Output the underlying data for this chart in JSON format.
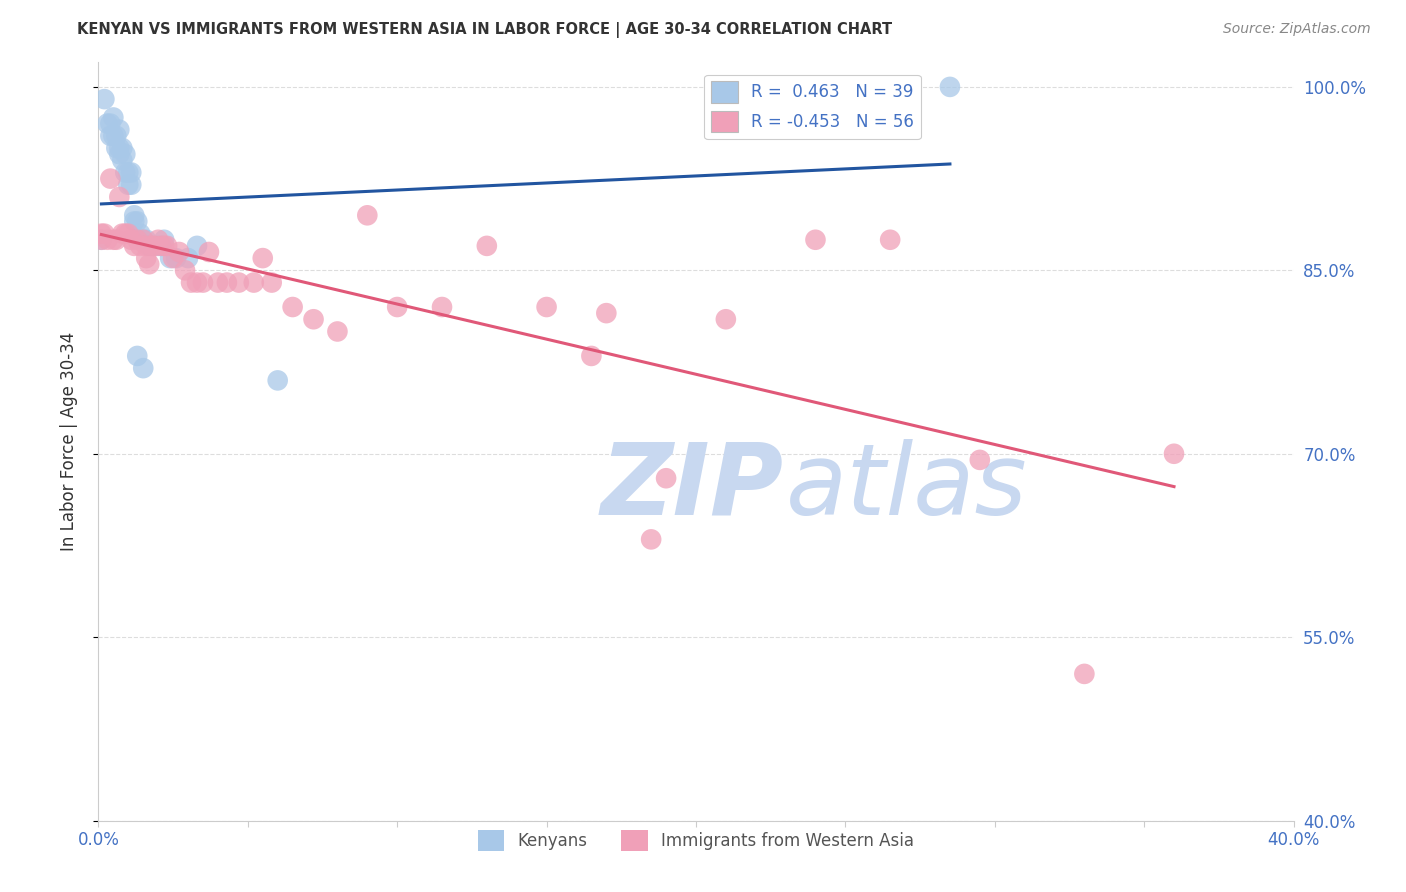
{
  "title": "KENYAN VS IMMIGRANTS FROM WESTERN ASIA IN LABOR FORCE | AGE 30-34 CORRELATION CHART",
  "source": "Source: ZipAtlas.com",
  "ylabel": "In Labor Force | Age 30-34",
  "xmin": 0.0,
  "xmax": 0.4,
  "ymin": 0.4,
  "ymax": 1.02,
  "ytick_positions": [
    1.0,
    0.85,
    0.7,
    0.55,
    0.4
  ],
  "ytick_labels": [
    "100.0%",
    "85.0%",
    "70.0%",
    "55.0%",
    "40.0%"
  ],
  "legend_labels": [
    "Kenyans",
    "Immigrants from Western Asia"
  ],
  "r_kenyan": "0.463",
  "n_kenyan": 39,
  "r_western_asia": "-0.453",
  "n_western_asia": 56,
  "kenyan_color": "#a8c8e8",
  "kenyan_line_color": "#2255a0",
  "western_asia_color": "#f0a0b8",
  "western_asia_line_color": "#e05878",
  "kenyan_x": [
    0.001,
    0.002,
    0.003,
    0.004,
    0.004,
    0.005,
    0.005,
    0.006,
    0.006,
    0.007,
    0.007,
    0.007,
    0.008,
    0.008,
    0.009,
    0.009,
    0.01,
    0.01,
    0.011,
    0.011,
    0.012,
    0.012,
    0.013,
    0.013,
    0.014,
    0.015,
    0.015,
    0.016,
    0.017,
    0.018,
    0.02,
    0.021,
    0.022,
    0.024,
    0.026,
    0.03,
    0.033,
    0.06,
    0.285
  ],
  "kenyan_y": [
    0.875,
    0.99,
    0.97,
    0.96,
    0.97,
    0.975,
    0.96,
    0.96,
    0.95,
    0.965,
    0.95,
    0.945,
    0.95,
    0.94,
    0.945,
    0.93,
    0.93,
    0.92,
    0.93,
    0.92,
    0.895,
    0.89,
    0.89,
    0.78,
    0.88,
    0.875,
    0.77,
    0.875,
    0.87,
    0.87,
    0.87,
    0.87,
    0.875,
    0.86,
    0.86,
    0.86,
    0.87,
    0.76,
    1.0
  ],
  "western_asia_x": [
    0.001,
    0.001,
    0.002,
    0.003,
    0.004,
    0.005,
    0.006,
    0.007,
    0.008,
    0.009,
    0.01,
    0.011,
    0.012,
    0.013,
    0.014,
    0.015,
    0.016,
    0.016,
    0.017,
    0.018,
    0.019,
    0.02,
    0.021,
    0.022,
    0.023,
    0.025,
    0.027,
    0.029,
    0.031,
    0.033,
    0.035,
    0.037,
    0.04,
    0.043,
    0.047,
    0.052,
    0.058,
    0.065,
    0.072,
    0.08,
    0.09,
    0.1,
    0.115,
    0.13,
    0.15,
    0.17,
    0.19,
    0.21,
    0.24,
    0.265,
    0.295,
    0.33,
    0.36,
    0.165,
    0.185,
    0.055
  ],
  "western_asia_y": [
    0.88,
    0.875,
    0.88,
    0.875,
    0.925,
    0.875,
    0.875,
    0.91,
    0.88,
    0.88,
    0.88,
    0.875,
    0.87,
    0.875,
    0.87,
    0.875,
    0.87,
    0.86,
    0.855,
    0.87,
    0.87,
    0.875,
    0.87,
    0.87,
    0.87,
    0.86,
    0.865,
    0.85,
    0.84,
    0.84,
    0.84,
    0.865,
    0.84,
    0.84,
    0.84,
    0.84,
    0.84,
    0.82,
    0.81,
    0.8,
    0.895,
    0.82,
    0.82,
    0.87,
    0.82,
    0.815,
    0.68,
    0.81,
    0.875,
    0.875,
    0.695,
    0.52,
    0.7,
    0.78,
    0.63,
    0.86
  ],
  "background_color": "#ffffff",
  "grid_color": "#dddddd",
  "title_color": "#333333",
  "tick_color": "#4472c4",
  "watermark_zip_color": "#c8d8f0",
  "watermark_atlas_color": "#c8d8f0",
  "legend_r_color": "#4472c4"
}
